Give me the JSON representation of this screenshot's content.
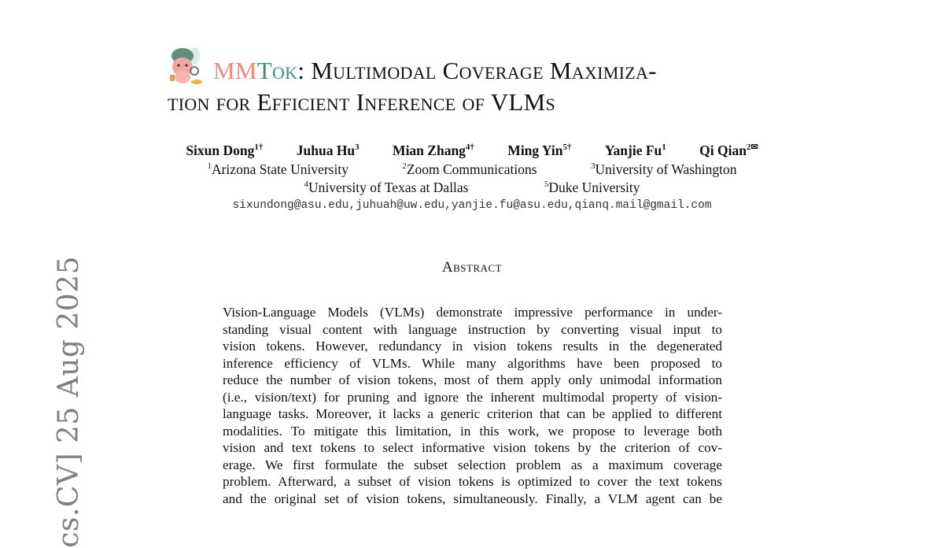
{
  "arxiv_stamp": "cs.CV]  25 Aug 2025",
  "title": {
    "name_mm": "MM",
    "name_tok": "Tok",
    "line1_rest": ": Multimodal Coverage Maximiza-",
    "line2": "tion for Efficient Inference of VLMs",
    "colors": {
      "mm": "#f08a7a",
      "tok": "#3e8b80"
    }
  },
  "authors": [
    {
      "name": "Sixun Dong",
      "sup": "1†"
    },
    {
      "name": "Juhua Hu",
      "sup": "3"
    },
    {
      "name": "Mian Zhang",
      "sup": "4†"
    },
    {
      "name": "Ming Yin",
      "sup": "5†"
    },
    {
      "name": "Yanjie Fu",
      "sup": "1"
    },
    {
      "name": "Qi Qian",
      "sup": "2✉"
    }
  ],
  "affiliations_row1": [
    {
      "sup": "1",
      "name": "Arizona State University"
    },
    {
      "sup": "2",
      "name": "Zoom Communications"
    },
    {
      "sup": "3",
      "name": "University of Washington"
    }
  ],
  "affiliations_row2": [
    {
      "sup": "4",
      "name": "University of Texas at Dallas"
    },
    {
      "sup": "5",
      "name": "Duke University"
    }
  ],
  "emails": "sixundong@asu.edu,juhuah@uw.edu,yanjie.fu@asu.edu,qianq.mail@gmail.com",
  "abstract_heading": "Abstract",
  "abstract_lines": [
    "Vision-Language Models (VLMs) demonstrate impressive performance in under-",
    "standing visual content with language instruction by converting visual input to",
    "vision tokens. However, redundancy in vision tokens results in the degenerated",
    "inference efficiency of VLMs. While many algorithms have been proposed to",
    "reduce the number of vision tokens, most of them apply only unimodal information",
    "(i.e., vision/text) for pruning and ignore the inherent multimodal property of vision-",
    "language tasks. Moreover, it lacks a generic criterion that can be applied to different",
    "modalities. To mitigate this limitation, in this work, we propose to leverage both",
    "vision and text tokens to select informative vision tokens by the criterion of cov-",
    "erage. We first formulate the subset selection problem as a maximum coverage",
    "problem. Afterward, a subset of vision tokens is optimized to cover the text tokens",
    "and the original set of vision tokens, simultaneously. Finally, a VLM agent can be"
  ]
}
